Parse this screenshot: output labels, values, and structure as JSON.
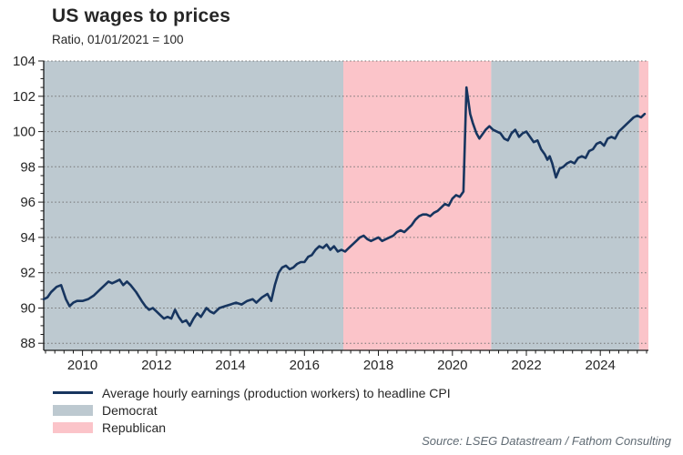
{
  "header": {
    "title": "US wages to prices",
    "subtitle": "Ratio, 01/01/2021 = 100"
  },
  "source": "Source: LSEG Datastream / Fathom Consulting",
  "colors": {
    "line": "#17355f",
    "democrat": "#bdc9d0",
    "republican": "#fbc4c9",
    "grid": "#737373",
    "axis": "#1a1a1a",
    "text": "#262626",
    "source_text": "#5f6a73"
  },
  "legend": [
    {
      "type": "line",
      "label": "Average hourly earnings (production workers) to headline CPI",
      "color": "#17355f"
    },
    {
      "type": "box",
      "label": "Democrat",
      "color": "#bdc9d0"
    },
    {
      "type": "box",
      "label": "Republican",
      "color": "#fbc4c9"
    }
  ],
  "chart_data": {
    "type": "line",
    "title": "US wages to prices",
    "subtitle": "Ratio, 01/01/2021 = 100",
    "xlabel": "",
    "ylabel": "Ratio, 01/01/2021 = 100",
    "x_range": [
      2008.95,
      2025.3
    ],
    "y_range": [
      87.6,
      104
    ],
    "y_ticks": [
      88,
      90,
      92,
      94,
      96,
      98,
      100,
      102,
      104
    ],
    "y_minor_step": 0.5,
    "x_ticks": [
      2010,
      2012,
      2014,
      2016,
      2018,
      2020,
      2022,
      2024
    ],
    "x_minor_step": 0.25,
    "grid": "horizontal-dotted",
    "legend_position": "bottom-left",
    "bands": [
      {
        "label": "Democrat",
        "from": 2008.95,
        "to": 2017.05
      },
      {
        "label": "Republican",
        "from": 2017.05,
        "to": 2021.05
      },
      {
        "label": "Democrat",
        "from": 2021.05,
        "to": 2025.05
      },
      {
        "label": "Republican",
        "from": 2025.05,
        "to": 2025.3
      }
    ],
    "series": [
      {
        "name": "Average hourly earnings (production workers) to headline CPI",
        "points": [
          [
            2008.95,
            90.5
          ],
          [
            2009.05,
            90.6
          ],
          [
            2009.15,
            90.9
          ],
          [
            2009.3,
            91.2
          ],
          [
            2009.42,
            91.3
          ],
          [
            2009.55,
            90.5
          ],
          [
            2009.65,
            90.1
          ],
          [
            2009.75,
            90.3
          ],
          [
            2009.85,
            90.4
          ],
          [
            2010.0,
            90.4
          ],
          [
            2010.15,
            90.5
          ],
          [
            2010.3,
            90.7
          ],
          [
            2010.45,
            91.0
          ],
          [
            2010.6,
            91.3
          ],
          [
            2010.7,
            91.5
          ],
          [
            2010.8,
            91.4
          ],
          [
            2010.9,
            91.5
          ],
          [
            2011.0,
            91.6
          ],
          [
            2011.1,
            91.3
          ],
          [
            2011.2,
            91.5
          ],
          [
            2011.3,
            91.3
          ],
          [
            2011.45,
            90.9
          ],
          [
            2011.6,
            90.4
          ],
          [
            2011.7,
            90.1
          ],
          [
            2011.8,
            89.9
          ],
          [
            2011.9,
            90.0
          ],
          [
            2012.0,
            89.8
          ],
          [
            2012.1,
            89.6
          ],
          [
            2012.2,
            89.4
          ],
          [
            2012.3,
            89.5
          ],
          [
            2012.4,
            89.4
          ],
          [
            2012.5,
            89.9
          ],
          [
            2012.6,
            89.5
          ],
          [
            2012.7,
            89.2
          ],
          [
            2012.8,
            89.3
          ],
          [
            2012.9,
            89.0
          ],
          [
            2013.0,
            89.4
          ],
          [
            2013.1,
            89.7
          ],
          [
            2013.2,
            89.5
          ],
          [
            2013.35,
            90.0
          ],
          [
            2013.45,
            89.8
          ],
          [
            2013.55,
            89.7
          ],
          [
            2013.7,
            90.0
          ],
          [
            2013.85,
            90.1
          ],
          [
            2014.0,
            90.2
          ],
          [
            2014.15,
            90.3
          ],
          [
            2014.3,
            90.2
          ],
          [
            2014.45,
            90.4
          ],
          [
            2014.6,
            90.5
          ],
          [
            2014.7,
            90.3
          ],
          [
            2014.85,
            90.6
          ],
          [
            2015.0,
            90.8
          ],
          [
            2015.1,
            90.4
          ],
          [
            2015.2,
            91.3
          ],
          [
            2015.3,
            92.0
          ],
          [
            2015.4,
            92.3
          ],
          [
            2015.5,
            92.4
          ],
          [
            2015.6,
            92.2
          ],
          [
            2015.7,
            92.3
          ],
          [
            2015.8,
            92.5
          ],
          [
            2015.9,
            92.6
          ],
          [
            2016.0,
            92.6
          ],
          [
            2016.1,
            92.9
          ],
          [
            2016.2,
            93.0
          ],
          [
            2016.3,
            93.3
          ],
          [
            2016.4,
            93.5
          ],
          [
            2016.5,
            93.4
          ],
          [
            2016.6,
            93.6
          ],
          [
            2016.7,
            93.3
          ],
          [
            2016.8,
            93.5
          ],
          [
            2016.9,
            93.2
          ],
          [
            2017.0,
            93.3
          ],
          [
            2017.1,
            93.2
          ],
          [
            2017.2,
            93.4
          ],
          [
            2017.3,
            93.6
          ],
          [
            2017.4,
            93.8
          ],
          [
            2017.5,
            94.0
          ],
          [
            2017.6,
            94.1
          ],
          [
            2017.7,
            93.9
          ],
          [
            2017.8,
            93.8
          ],
          [
            2017.9,
            93.9
          ],
          [
            2018.0,
            94.0
          ],
          [
            2018.1,
            93.8
          ],
          [
            2018.2,
            93.9
          ],
          [
            2018.3,
            94.0
          ],
          [
            2018.4,
            94.1
          ],
          [
            2018.5,
            94.3
          ],
          [
            2018.6,
            94.4
          ],
          [
            2018.7,
            94.3
          ],
          [
            2018.8,
            94.5
          ],
          [
            2018.9,
            94.7
          ],
          [
            2019.0,
            95.0
          ],
          [
            2019.1,
            95.2
          ],
          [
            2019.2,
            95.3
          ],
          [
            2019.3,
            95.3
          ],
          [
            2019.4,
            95.2
          ],
          [
            2019.5,
            95.4
          ],
          [
            2019.6,
            95.5
          ],
          [
            2019.7,
            95.7
          ],
          [
            2019.8,
            95.9
          ],
          [
            2019.9,
            95.8
          ],
          [
            2020.0,
            96.2
          ],
          [
            2020.1,
            96.4
          ],
          [
            2020.2,
            96.3
          ],
          [
            2020.3,
            96.6
          ],
          [
            2020.38,
            102.5
          ],
          [
            2020.48,
            101.0
          ],
          [
            2020.55,
            100.5
          ],
          [
            2020.65,
            99.9
          ],
          [
            2020.73,
            99.6
          ],
          [
            2020.8,
            99.8
          ],
          [
            2020.9,
            100.1
          ],
          [
            2021.0,
            100.3
          ],
          [
            2021.1,
            100.1
          ],
          [
            2021.2,
            100.0
          ],
          [
            2021.3,
            99.9
          ],
          [
            2021.4,
            99.6
          ],
          [
            2021.5,
            99.5
          ],
          [
            2021.6,
            99.9
          ],
          [
            2021.7,
            100.1
          ],
          [
            2021.8,
            99.7
          ],
          [
            2021.9,
            99.9
          ],
          [
            2022.0,
            100.0
          ],
          [
            2022.1,
            99.7
          ],
          [
            2022.2,
            99.4
          ],
          [
            2022.3,
            99.5
          ],
          [
            2022.4,
            99.0
          ],
          [
            2022.5,
            98.7
          ],
          [
            2022.57,
            98.4
          ],
          [
            2022.63,
            98.6
          ],
          [
            2022.7,
            98.2
          ],
          [
            2022.8,
            97.4
          ],
          [
            2022.9,
            97.9
          ],
          [
            2023.0,
            98.0
          ],
          [
            2023.1,
            98.2
          ],
          [
            2023.2,
            98.3
          ],
          [
            2023.3,
            98.2
          ],
          [
            2023.4,
            98.5
          ],
          [
            2023.5,
            98.6
          ],
          [
            2023.6,
            98.5
          ],
          [
            2023.7,
            98.9
          ],
          [
            2023.8,
            99.0
          ],
          [
            2023.9,
            99.3
          ],
          [
            2024.0,
            99.4
          ],
          [
            2024.1,
            99.2
          ],
          [
            2024.2,
            99.6
          ],
          [
            2024.3,
            99.7
          ],
          [
            2024.4,
            99.6
          ],
          [
            2024.5,
            100.0
          ],
          [
            2024.6,
            100.2
          ],
          [
            2024.7,
            100.4
          ],
          [
            2024.8,
            100.6
          ],
          [
            2024.9,
            100.8
          ],
          [
            2025.0,
            100.9
          ],
          [
            2025.1,
            100.8
          ],
          [
            2025.2,
            101.0
          ]
        ]
      }
    ]
  }
}
